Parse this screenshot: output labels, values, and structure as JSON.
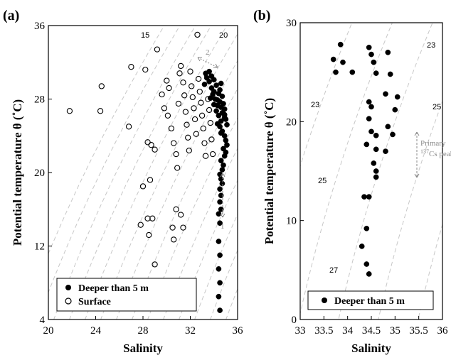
{
  "colors": {
    "deep": "#000000",
    "surface": "#000000",
    "isopycnal": "#c8c8c8",
    "annotation": "#888888"
  },
  "chart_data": [
    {
      "type": "scatter",
      "panel": "(a)",
      "xlabel": "Salinity",
      "ylabel": "Potential temperature θ (˚C)",
      "xlim": [
        20,
        36
      ],
      "ylim": [
        4,
        36
      ],
      "xticks": [
        "20",
        "24",
        "28",
        "32",
        "36"
      ],
      "yticks": [
        "4",
        "12",
        "20",
        "28",
        "36"
      ],
      "legend": {
        "position": "bottom-left",
        "deeper": "Deeper than 5 m",
        "surface": "Surface"
      },
      "isopycnal_labels": [
        "15",
        "20"
      ],
      "annotations": [
        "2",
        "1"
      ],
      "series": [
        {
          "name": "Deeper than 5 m",
          "marker": "filled-circle",
          "points": [
            [
              34.5,
              5.0
            ],
            [
              34.4,
              6.5
            ],
            [
              34.5,
              8.0
            ],
            [
              34.4,
              9.5
            ],
            [
              34.5,
              11.0
            ],
            [
              34.4,
              12.5
            ],
            [
              34.5,
              14.5
            ],
            [
              34.4,
              15.5
            ],
            [
              34.6,
              16.0
            ],
            [
              34.5,
              16.8
            ],
            [
              34.6,
              17.5
            ],
            [
              34.5,
              18.2
            ],
            [
              34.7,
              18.8
            ],
            [
              34.6,
              19.3
            ],
            [
              34.5,
              19.8
            ],
            [
              34.7,
              20.3
            ],
            [
              34.8,
              20.8
            ],
            [
              34.6,
              21.3
            ],
            [
              34.9,
              21.8
            ],
            [
              35.0,
              22.2
            ],
            [
              34.8,
              22.6
            ],
            [
              35.1,
              23.0
            ],
            [
              35.0,
              23.5
            ],
            [
              34.9,
              24.0
            ],
            [
              34.7,
              24.5
            ],
            [
              34.5,
              25.0
            ],
            [
              34.3,
              25.3
            ],
            [
              34.6,
              25.6
            ],
            [
              34.9,
              26.0
            ],
            [
              34.4,
              26.2
            ],
            [
              34.7,
              26.5
            ],
            [
              34.2,
              26.7
            ],
            [
              34.9,
              26.9
            ],
            [
              34.6,
              27.1
            ],
            [
              34.3,
              27.3
            ],
            [
              34.8,
              27.5
            ],
            [
              34.5,
              27.7
            ],
            [
              34.1,
              28.0
            ],
            [
              34.7,
              28.3
            ],
            [
              34.4,
              28.6
            ],
            [
              34.0,
              28.8
            ],
            [
              34.5,
              29.0
            ],
            [
              33.8,
              29.2
            ],
            [
              34.2,
              29.5
            ],
            [
              34.6,
              29.7
            ],
            [
              33.6,
              29.9
            ],
            [
              34.0,
              30.1
            ],
            [
              33.4,
              30.3
            ],
            [
              33.8,
              30.5
            ],
            [
              33.3,
              30.8
            ],
            [
              33.6,
              31.0
            ],
            [
              33.2,
              29.6
            ],
            [
              33.9,
              28.5
            ],
            [
              34.3,
              27.9
            ],
            [
              34.9,
              26.3
            ],
            [
              35.0,
              25.8
            ],
            [
              35.1,
              25.2
            ],
            [
              34.6,
              24.3
            ],
            [
              33.7,
              28.1
            ],
            [
              34.0,
              27.4
            ]
          ]
        },
        {
          "name": "Surface",
          "marker": "open-circle",
          "points": [
            [
              21.8,
              26.7
            ],
            [
              24.4,
              26.7
            ],
            [
              24.5,
              29.4
            ],
            [
              26.8,
              25.0
            ],
            [
              27.0,
              31.5
            ],
            [
              28.0,
              18.5
            ],
            [
              28.2,
              31.2
            ],
            [
              28.4,
              23.3
            ],
            [
              28.7,
              23.0
            ],
            [
              29.0,
              22.5
            ],
            [
              28.6,
              19.2
            ],
            [
              28.4,
              15.0
            ],
            [
              28.8,
              15.0
            ],
            [
              28.5,
              13.2
            ],
            [
              29.0,
              10.0
            ],
            [
              27.8,
              14.3
            ],
            [
              29.2,
              33.4
            ],
            [
              29.6,
              28.5
            ],
            [
              30.0,
              30.0
            ],
            [
              29.8,
              27.0
            ],
            [
              30.1,
              26.2
            ],
            [
              30.4,
              24.8
            ],
            [
              30.6,
              23.2
            ],
            [
              30.8,
              22.0
            ],
            [
              30.9,
              20.5
            ],
            [
              31.0,
              27.5
            ],
            [
              31.1,
              30.8
            ],
            [
              31.2,
              31.6
            ],
            [
              31.4,
              29.8
            ],
            [
              31.5,
              28.4
            ],
            [
              31.6,
              26.6
            ],
            [
              31.7,
              25.2
            ],
            [
              31.8,
              23.8
            ],
            [
              31.9,
              22.4
            ],
            [
              32.0,
              31.0
            ],
            [
              32.1,
              29.4
            ],
            [
              32.2,
              28.2
            ],
            [
              32.3,
              27.0
            ],
            [
              32.4,
              25.8
            ],
            [
              32.5,
              24.2
            ],
            [
              32.6,
              35.0
            ],
            [
              32.7,
              30.2
            ],
            [
              32.8,
              28.8
            ],
            [
              32.9,
              27.6
            ],
            [
              33.0,
              26.2
            ],
            [
              33.1,
              24.8
            ],
            [
              33.2,
              23.2
            ],
            [
              33.3,
              21.8
            ],
            [
              33.4,
              30.6
            ],
            [
              33.5,
              28.0
            ],
            [
              33.6,
              26.8
            ],
            [
              33.7,
              25.4
            ],
            [
              33.8,
              23.6
            ],
            [
              33.9,
              22.0
            ],
            [
              30.8,
              16.0
            ],
            [
              30.5,
              14.0
            ],
            [
              30.6,
              12.7
            ],
            [
              31.2,
              15.4
            ],
            [
              31.4,
              14.0
            ],
            [
              30.2,
              29.2
            ]
          ]
        }
      ]
    },
    {
      "type": "scatter",
      "panel": "(b)",
      "xlabel": "Salinity",
      "ylabel": "Potential temperature θ (˚C)",
      "xlim": [
        33,
        36
      ],
      "ylim": [
        0,
        30
      ],
      "xticks": [
        "33",
        "33.5",
        "34",
        "34.5",
        "35",
        "35.5",
        "36"
      ],
      "yticks": [
        "0",
        "10",
        "20",
        "30"
      ],
      "legend": {
        "position": "bottom",
        "deeper": "Deeper than 5 m"
      },
      "isopycnal_labels": [
        "23",
        "23",
        "25",
        "25",
        "27"
      ],
      "peak_annotation": {
        "line1": "Primary",
        "sup": "137",
        "line2": "Cs peak"
      },
      "series": [
        {
          "name": "Deeper than 5 m",
          "marker": "filled-circle",
          "points": [
            [
              33.85,
              27.8
            ],
            [
              33.7,
              26.3
            ],
            [
              33.9,
              26.0
            ],
            [
              33.75,
              25.0
            ],
            [
              34.1,
              25.0
            ],
            [
              34.45,
              27.5
            ],
            [
              34.5,
              26.8
            ],
            [
              34.55,
              26.0
            ],
            [
              34.6,
              24.9
            ],
            [
              34.85,
              27.0
            ],
            [
              34.9,
              24.8
            ],
            [
              34.45,
              22.0
            ],
            [
              34.5,
              21.5
            ],
            [
              34.8,
              22.8
            ],
            [
              35.05,
              22.5
            ],
            [
              35.0,
              21.2
            ],
            [
              34.45,
              20.3
            ],
            [
              34.5,
              19.0
            ],
            [
              34.6,
              18.6
            ],
            [
              34.85,
              19.5
            ],
            [
              34.95,
              18.7
            ],
            [
              34.4,
              17.7
            ],
            [
              34.6,
              17.2
            ],
            [
              34.8,
              17.0
            ],
            [
              34.55,
              15.8
            ],
            [
              34.6,
              15.0
            ],
            [
              34.6,
              14.4
            ],
            [
              34.35,
              12.4
            ],
            [
              34.45,
              12.4
            ],
            [
              34.4,
              9.2
            ],
            [
              34.3,
              7.4
            ],
            [
              34.4,
              5.6
            ],
            [
              34.45,
              4.6
            ]
          ]
        }
      ]
    }
  ]
}
